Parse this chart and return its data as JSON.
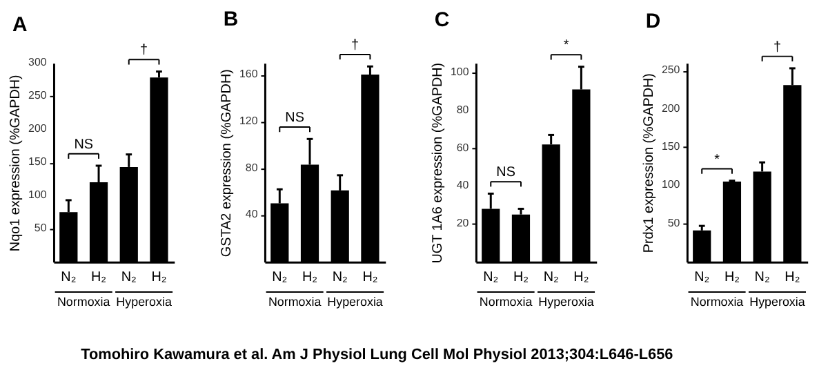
{
  "chart_data": [
    {
      "type": "bar",
      "title": "A",
      "ylabel": "Nqo1 expression (%GAPDH)",
      "categories": [
        "N₂",
        "H₂",
        "N₂",
        "H₂"
      ],
      "values": [
        75,
        120,
        143,
        278
      ],
      "errors": [
        [
          75,
          93
        ],
        [
          120,
          145
        ],
        [
          143,
          162
        ],
        [
          278,
          287
        ]
      ],
      "color": "#000000",
      "ylim": [
        0,
        300
      ],
      "yticks": [
        50,
        100,
        150,
        200,
        250,
        300
      ],
      "grid": false,
      "annotations": [
        "NS",
        "†",
        "Normoxia",
        "Hyperoxia"
      ]
    },
    {
      "type": "bar",
      "title": "B",
      "ylabel": "GSTA2 expression (%GAPDH)",
      "categories": [
        "N₂",
        "H₂",
        "N₂",
        "H₂"
      ],
      "values": [
        50,
        83,
        61,
        160
      ],
      "errors": [
        [
          50,
          62
        ],
        [
          83,
          105
        ],
        [
          61,
          74
        ],
        [
          160,
          167
        ]
      ],
      "color": "#000000",
      "ylim": [
        0,
        170
      ],
      "yticks": [
        40,
        80,
        120,
        160
      ],
      "grid": false,
      "annotations": [
        "NS",
        "†",
        "Normoxia",
        "Hyperoxia"
      ]
    },
    {
      "type": "bar",
      "title": "C",
      "ylabel": "UGT 1A6 expression (%GAPDH)",
      "categories": [
        "N₂",
        "H₂",
        "N₂",
        "H₂"
      ],
      "values": [
        28,
        25,
        62,
        91
      ],
      "errors": [
        [
          28,
          36
        ],
        [
          25,
          28
        ],
        [
          62,
          67
        ],
        [
          91,
          103
        ]
      ],
      "color": "#000000",
      "ylim": [
        0,
        105
      ],
      "yticks": [
        20,
        40,
        60,
        80,
        100
      ],
      "grid": false,
      "annotations": [
        "NS",
        "*",
        "Normoxia",
        "Hyperoxia"
      ]
    },
    {
      "type": "bar",
      "title": "D",
      "ylabel": "Prdx1 expression (%GAPDH)",
      "categories": [
        "N₂",
        "H₂",
        "N₂",
        "H₂"
      ],
      "values": [
        41,
        105,
        118,
        231
      ],
      "errors": [
        [
          41,
          47
        ],
        [
          105,
          106
        ],
        [
          118,
          130
        ],
        [
          231,
          253
        ]
      ],
      "color": "#000000",
      "ylim": [
        0,
        260
      ],
      "yticks": [
        50,
        100,
        150,
        200,
        250
      ],
      "grid": false,
      "annotations": [
        "*",
        "†",
        "Normoxia",
        "Hyperoxia"
      ]
    },
    {
      "type": "other",
      "annotations": [
        "Tomohiro Kawamura et al. Am J Physiol Lung Cell Mol Physiol 2013;304:L646-L656"
      ]
    }
  ]
}
